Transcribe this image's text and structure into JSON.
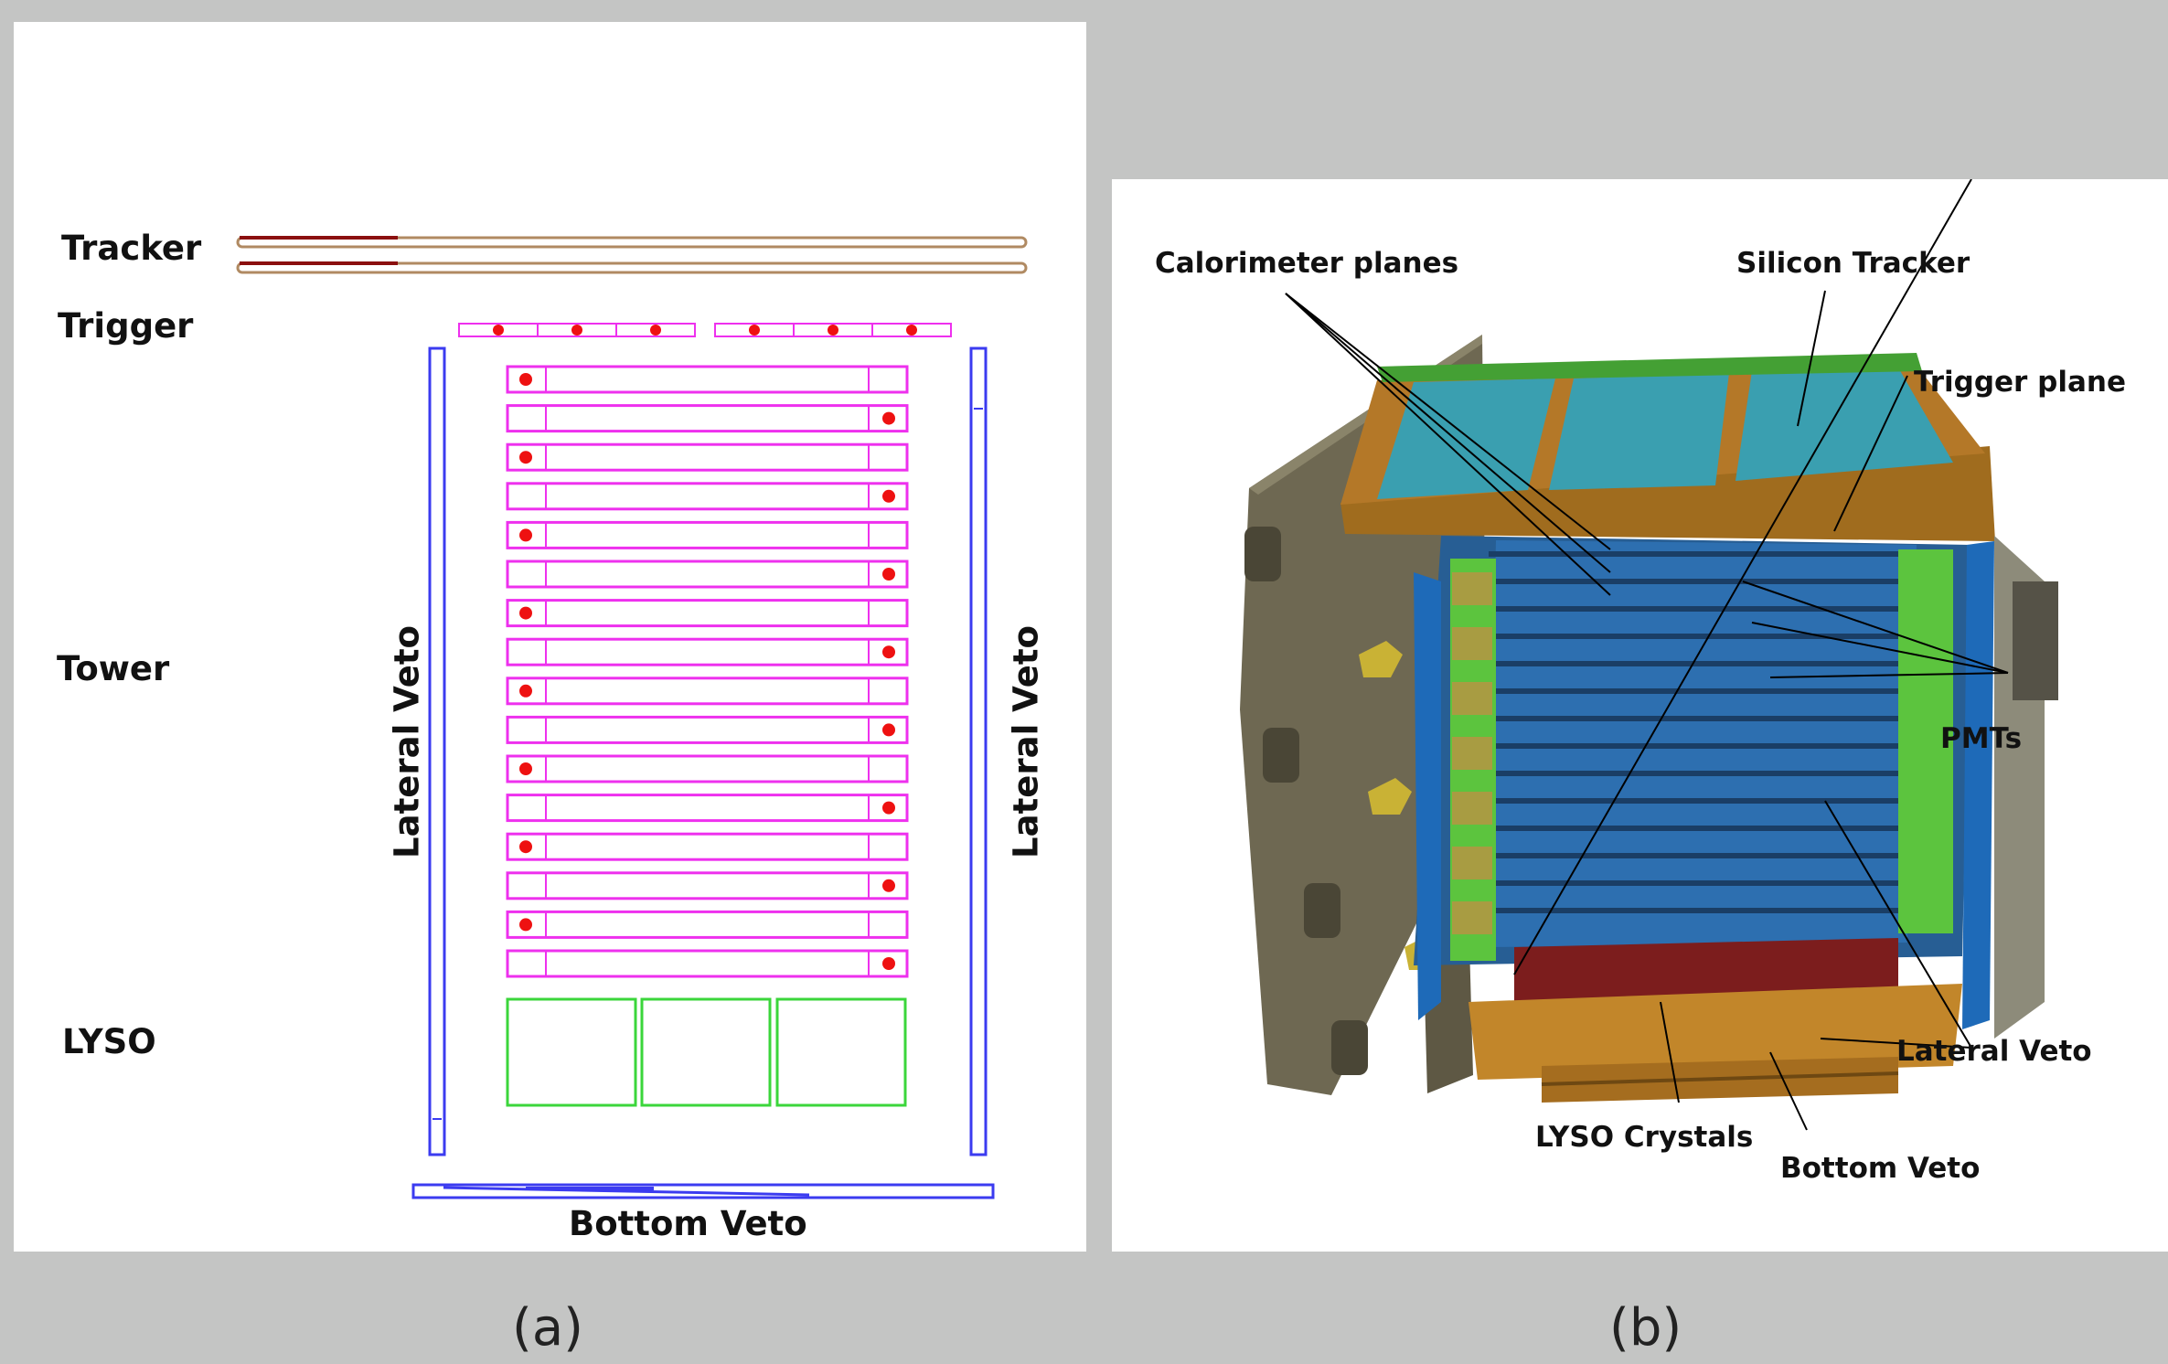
{
  "panel_a": {
    "labels": {
      "tracker": "Tracker",
      "trigger": "Trigger",
      "tower": "Tower",
      "lyso": "LYSO",
      "lateral_veto_left": "Lateral Veto",
      "lateral_veto_right": "Lateral Veto",
      "bottom_veto": "Bottom Veto"
    },
    "colors": {
      "tracker_red": "#8b0f0f",
      "tracker_tan": "#b08a62",
      "tower_magenta": "#ee30ee",
      "veto_blue": "#3b3bf0",
      "lyso_green": "#3bd63b",
      "pmt_red": "#ee1111"
    },
    "tower_plane_count": 16,
    "trigger_bar_count": 6,
    "lyso_crystal_count": 3
  },
  "panel_b": {
    "labels": {
      "calorimeter_planes": "Calorimeter planes",
      "silicon_tracker": "Silicon Tracker",
      "trigger_plane": "Trigger plane",
      "pmts": "PMTs",
      "lateral_veto": "Lateral Veto",
      "lyso_crystals": "LYSO Crystals",
      "bottom_veto": "Bottom Veto"
    }
  },
  "captions": {
    "a": "(a)",
    "b": "(b)"
  }
}
